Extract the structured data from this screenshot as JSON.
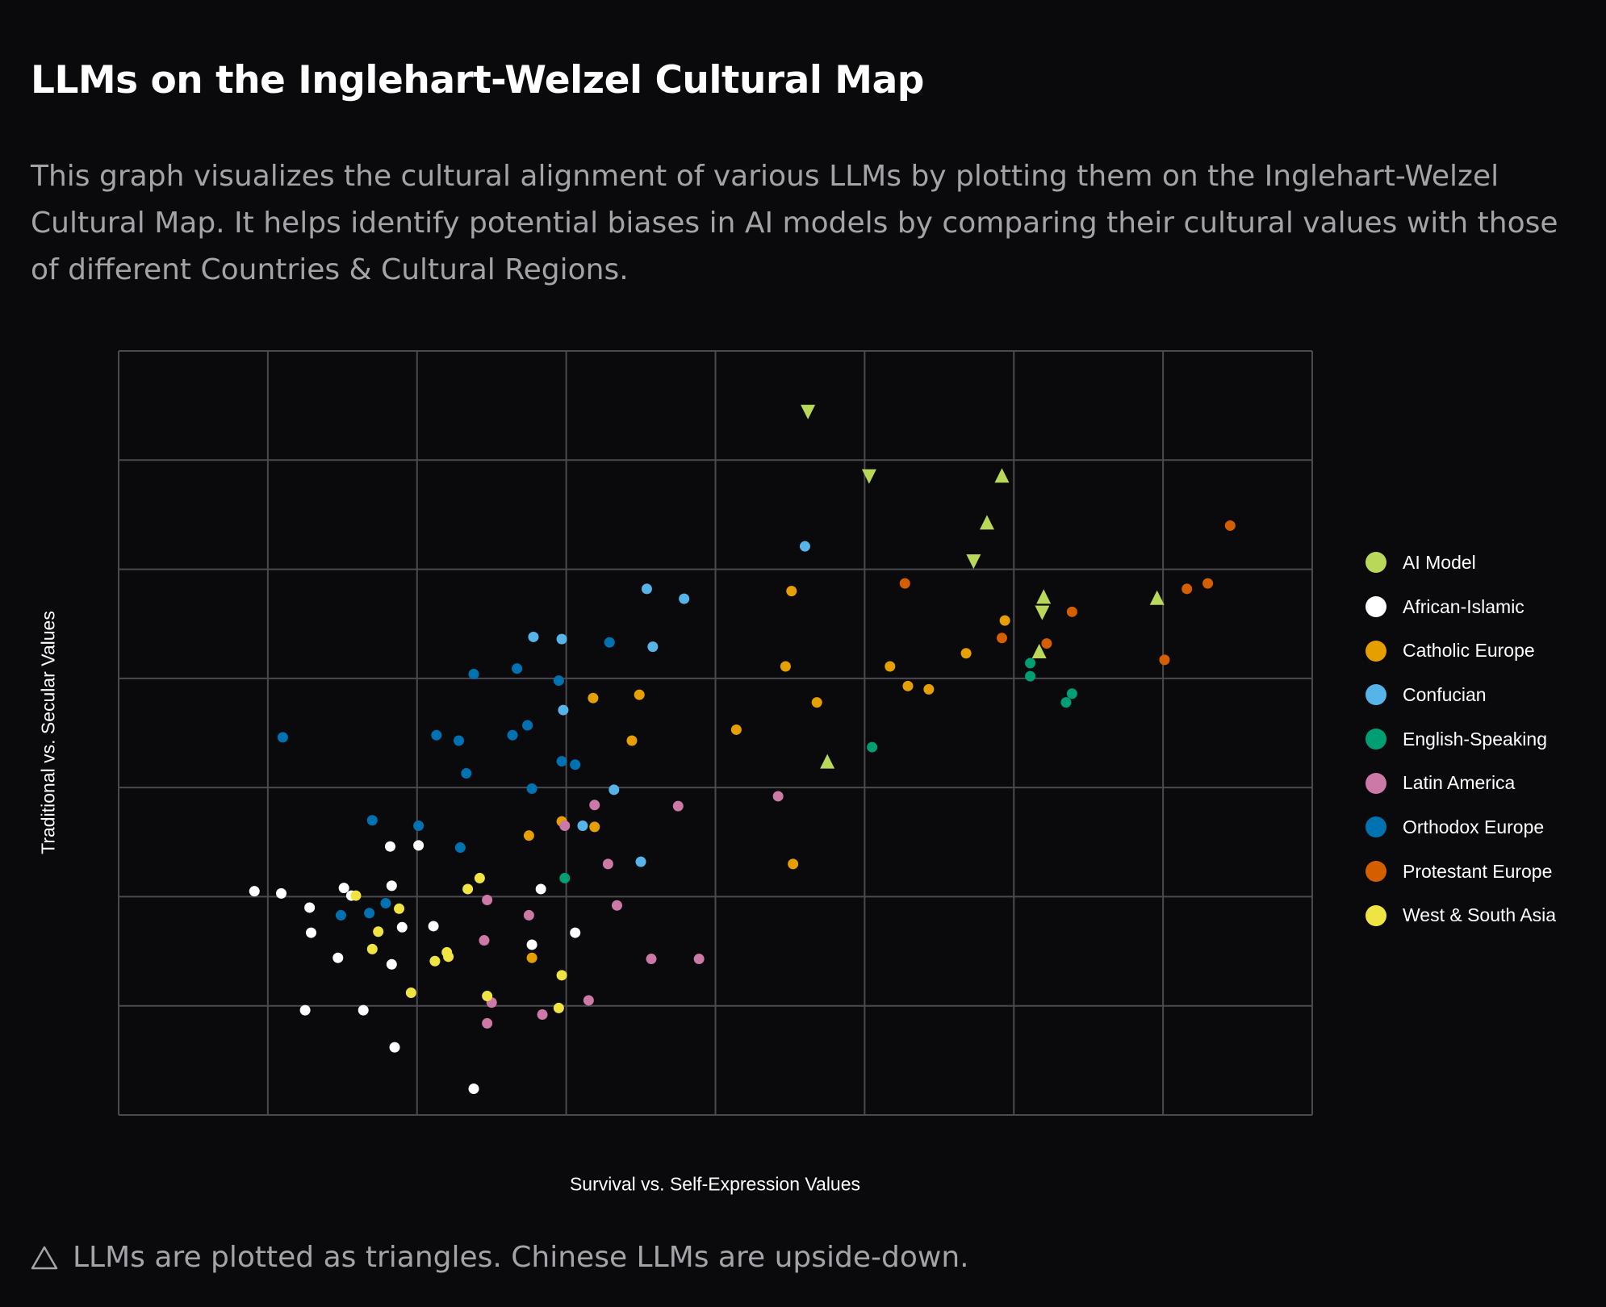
{
  "title": "LLMs on the Inglehart-Welzel Cultural Map",
  "description": "This graph visualizes the cultural alignment of various LLMs by plotting them on the Inglehart-Welzel Cultural Map. It helps identify potential biases in AI models by comparing their cultural values with those of different Countries & Cultural Regions.",
  "footer": {
    "icon": "warning-triangle-icon",
    "text": "LLMs are plotted as triangles. Chinese LLMs are upside-down."
  },
  "chart_data": {
    "type": "scatter",
    "title": "",
    "xlabel": "Survival vs. Self-Expression Values",
    "ylabel": "Traditional vs. Secular Values",
    "xlim": [
      0,
      8
    ],
    "ylim": [
      0,
      7
    ],
    "grid": true,
    "tick_labels_shown": false,
    "legend_position": "right",
    "series": [
      {
        "name": "AI Model",
        "color": "#b9d85a",
        "marker": "triangle",
        "points": [
          {
            "x": 4.62,
            "y": 6.44,
            "orientation": "down"
          },
          {
            "x": 5.03,
            "y": 5.85,
            "orientation": "down"
          },
          {
            "x": 5.92,
            "y": 5.86,
            "orientation": "up"
          },
          {
            "x": 5.82,
            "y": 5.43,
            "orientation": "up"
          },
          {
            "x": 5.73,
            "y": 5.07,
            "orientation": "down"
          },
          {
            "x": 6.2,
            "y": 4.75,
            "orientation": "up"
          },
          {
            "x": 6.19,
            "y": 4.6,
            "orientation": "down"
          },
          {
            "x": 6.17,
            "y": 4.25,
            "orientation": "up"
          },
          {
            "x": 6.96,
            "y": 4.74,
            "orientation": "up"
          },
          {
            "x": 4.75,
            "y": 3.24,
            "orientation": "up"
          }
        ]
      },
      {
        "name": "African-Islamic",
        "color": "#ffffff",
        "marker": "circle",
        "points": [
          {
            "x": 0.91,
            "y": 2.05
          },
          {
            "x": 1.09,
            "y": 2.03
          },
          {
            "x": 1.28,
            "y": 1.9
          },
          {
            "x": 1.29,
            "y": 1.67
          },
          {
            "x": 1.51,
            "y": 2.08
          },
          {
            "x": 1.56,
            "y": 2.01
          },
          {
            "x": 1.47,
            "y": 1.44
          },
          {
            "x": 1.82,
            "y": 2.46
          },
          {
            "x": 1.83,
            "y": 2.1
          },
          {
            "x": 1.9,
            "y": 1.72
          },
          {
            "x": 1.83,
            "y": 1.38
          },
          {
            "x": 1.25,
            "y": 0.96
          },
          {
            "x": 1.64,
            "y": 0.96
          },
          {
            "x": 1.85,
            "y": 0.62
          },
          {
            "x": 2.01,
            "y": 2.47
          },
          {
            "x": 2.11,
            "y": 1.73
          },
          {
            "x": 2.38,
            "y": 0.24
          },
          {
            "x": 2.83,
            "y": 2.07
          },
          {
            "x": 2.77,
            "y": 1.56
          },
          {
            "x": 3.06,
            "y": 1.67
          }
        ]
      },
      {
        "name": "Catholic Europe",
        "color": "#e69f00",
        "marker": "circle",
        "points": [
          {
            "x": 4.51,
            "y": 4.8
          },
          {
            "x": 4.47,
            "y": 4.11
          },
          {
            "x": 4.68,
            "y": 3.78
          },
          {
            "x": 4.14,
            "y": 3.53
          },
          {
            "x": 3.18,
            "y": 3.82
          },
          {
            "x": 3.49,
            "y": 3.85
          },
          {
            "x": 3.44,
            "y": 3.43
          },
          {
            "x": 2.97,
            "y": 2.69
          },
          {
            "x": 3.19,
            "y": 2.64
          },
          {
            "x": 2.75,
            "y": 2.56
          },
          {
            "x": 2.77,
            "y": 1.44
          },
          {
            "x": 4.52,
            "y": 2.3
          },
          {
            "x": 5.17,
            "y": 4.11
          },
          {
            "x": 5.29,
            "y": 3.93
          },
          {
            "x": 5.43,
            "y": 3.9
          },
          {
            "x": 5.68,
            "y": 4.23
          },
          {
            "x": 5.94,
            "y": 4.53
          }
        ]
      },
      {
        "name": "Confucian",
        "color": "#56b4e9",
        "marker": "circle",
        "points": [
          {
            "x": 4.6,
            "y": 5.21
          },
          {
            "x": 3.54,
            "y": 4.82
          },
          {
            "x": 3.79,
            "y": 4.73
          },
          {
            "x": 2.78,
            "y": 4.38
          },
          {
            "x": 2.97,
            "y": 4.36
          },
          {
            "x": 3.58,
            "y": 4.29
          },
          {
            "x": 2.98,
            "y": 3.71
          },
          {
            "x": 3.32,
            "y": 2.98
          },
          {
            "x": 3.11,
            "y": 2.65
          },
          {
            "x": 3.5,
            "y": 2.32
          }
        ]
      },
      {
        "name": "English-Speaking",
        "color": "#009e73",
        "marker": "circle",
        "points": [
          {
            "x": 6.11,
            "y": 4.14
          },
          {
            "x": 6.11,
            "y": 4.02
          },
          {
            "x": 6.39,
            "y": 3.86
          },
          {
            "x": 6.35,
            "y": 3.78
          },
          {
            "x": 5.05,
            "y": 3.37
          },
          {
            "x": 2.99,
            "y": 2.17
          }
        ]
      },
      {
        "name": "Latin America",
        "color": "#cc79a7",
        "marker": "circle",
        "points": [
          {
            "x": 3.19,
            "y": 2.84
          },
          {
            "x": 3.75,
            "y": 2.83
          },
          {
            "x": 4.42,
            "y": 2.92
          },
          {
            "x": 2.99,
            "y": 2.65
          },
          {
            "x": 3.28,
            "y": 2.3
          },
          {
            "x": 2.47,
            "y": 1.97
          },
          {
            "x": 3.34,
            "y": 1.92
          },
          {
            "x": 2.75,
            "y": 1.83
          },
          {
            "x": 2.45,
            "y": 1.6
          },
          {
            "x": 3.57,
            "y": 1.43
          },
          {
            "x": 3.89,
            "y": 1.43
          },
          {
            "x": 3.15,
            "y": 1.05
          },
          {
            "x": 2.5,
            "y": 1.03
          },
          {
            "x": 2.84,
            "y": 0.92
          },
          {
            "x": 2.47,
            "y": 0.84
          }
        ]
      },
      {
        "name": "Orthodox Europe",
        "color": "#0072b2",
        "marker": "circle",
        "points": [
          {
            "x": 1.1,
            "y": 3.46
          },
          {
            "x": 2.38,
            "y": 4.04
          },
          {
            "x": 2.67,
            "y": 4.09
          },
          {
            "x": 3.29,
            "y": 4.33
          },
          {
            "x": 2.95,
            "y": 3.98
          },
          {
            "x": 2.74,
            "y": 3.57
          },
          {
            "x": 2.64,
            "y": 3.48
          },
          {
            "x": 2.13,
            "y": 3.48
          },
          {
            "x": 2.28,
            "y": 3.43
          },
          {
            "x": 2.33,
            "y": 3.13
          },
          {
            "x": 2.97,
            "y": 3.24
          },
          {
            "x": 3.06,
            "y": 3.21
          },
          {
            "x": 2.77,
            "y": 2.99
          },
          {
            "x": 1.7,
            "y": 2.7
          },
          {
            "x": 2.01,
            "y": 2.65
          },
          {
            "x": 2.29,
            "y": 2.45
          },
          {
            "x": 1.79,
            "y": 1.94
          },
          {
            "x": 1.68,
            "y": 1.85
          },
          {
            "x": 1.49,
            "y": 1.83
          }
        ]
      },
      {
        "name": "Protestant Europe",
        "color": "#d55e00",
        "marker": "circle",
        "points": [
          {
            "x": 7.45,
            "y": 5.4
          },
          {
            "x": 5.27,
            "y": 4.87
          },
          {
            "x": 7.16,
            "y": 4.82
          },
          {
            "x": 7.3,
            "y": 4.87
          },
          {
            "x": 6.39,
            "y": 4.61
          },
          {
            "x": 5.92,
            "y": 4.37
          },
          {
            "x": 6.22,
            "y": 4.32
          },
          {
            "x": 7.01,
            "y": 4.17
          }
        ]
      },
      {
        "name": "West & South Asia",
        "color": "#f0e442",
        "marker": "circle",
        "points": [
          {
            "x": 1.59,
            "y": 2.01
          },
          {
            "x": 1.88,
            "y": 1.89
          },
          {
            "x": 2.42,
            "y": 2.17
          },
          {
            "x": 2.34,
            "y": 2.07
          },
          {
            "x": 1.74,
            "y": 1.68
          },
          {
            "x": 1.7,
            "y": 1.52
          },
          {
            "x": 2.2,
            "y": 1.49
          },
          {
            "x": 2.21,
            "y": 1.45
          },
          {
            "x": 2.12,
            "y": 1.41
          },
          {
            "x": 1.96,
            "y": 1.12
          },
          {
            "x": 2.47,
            "y": 1.09
          },
          {
            "x": 2.97,
            "y": 1.28
          },
          {
            "x": 2.95,
            "y": 0.98
          }
        ]
      }
    ]
  }
}
